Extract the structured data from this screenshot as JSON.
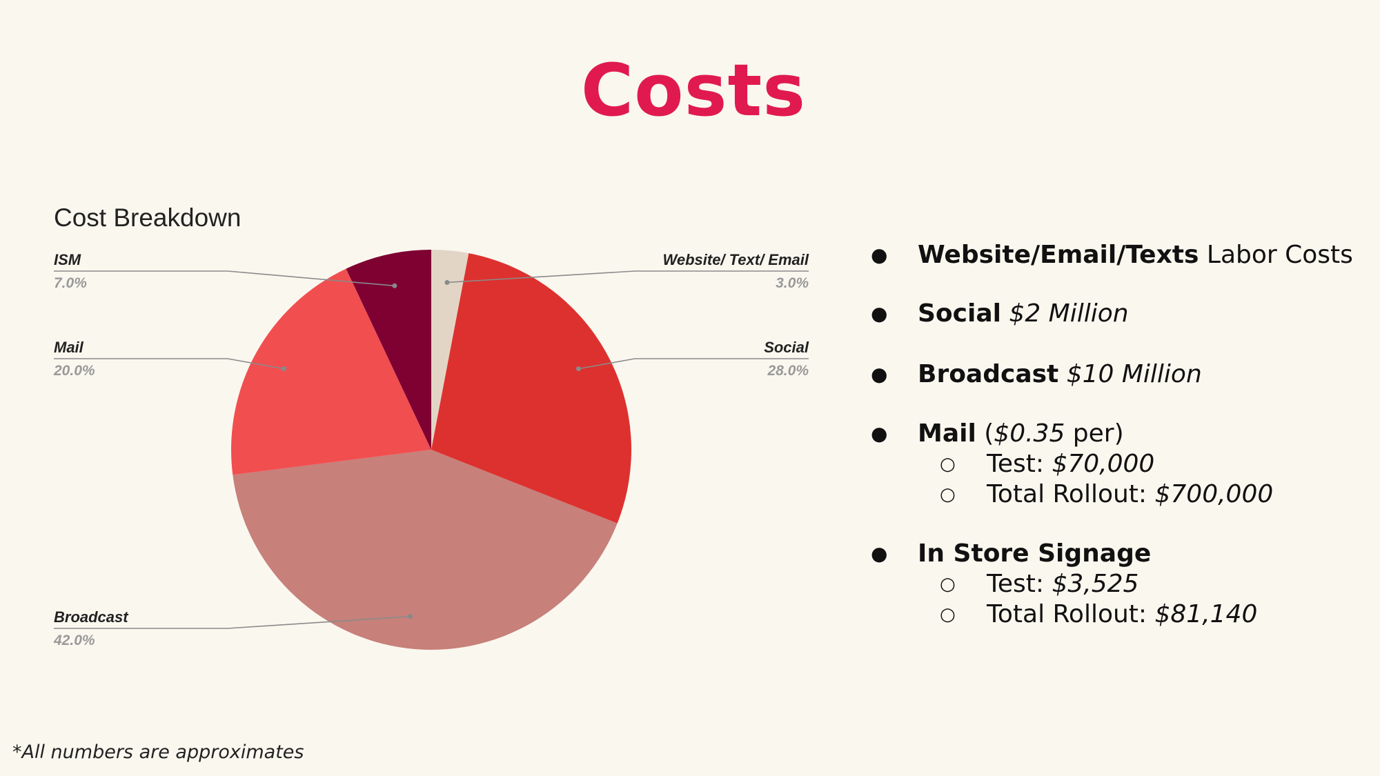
{
  "slide": {
    "title": "Costs",
    "footnote": "*All numbers are approximates"
  },
  "chart_data": {
    "type": "pie",
    "title": "Cost Breakdown",
    "slices": [
      {
        "label": "Website/ Text/ Email",
        "value": 3.0,
        "pct_label": "3.0%",
        "color": "#e2d5c6"
      },
      {
        "label": "Social",
        "value": 28.0,
        "pct_label": "28.0%",
        "color": "#dd312f"
      },
      {
        "label": "Broadcast",
        "value": 42.0,
        "pct_label": "42.0%",
        "color": "#c7807a"
      },
      {
        "label": "Mail",
        "value": 20.0,
        "pct_label": "20.0%",
        "color": "#f14e50"
      },
      {
        "label": "ISM",
        "value": 7.0,
        "pct_label": "7.0%",
        "color": "#7e0132"
      }
    ],
    "legend": "outside-labels"
  },
  "bullets": {
    "item1": {
      "bold": "Website/Email/Texts",
      "text": " Labor Costs"
    },
    "item2": {
      "bold": "Social",
      "text": " $2 Million"
    },
    "item3": {
      "bold": "Broadcast",
      "text": " $10 Million"
    },
    "item4": {
      "bold": "Mail",
      "text_a": " (",
      "text_italic": "$0.35",
      "text_b": " per)",
      "sub1_label": "Test: ",
      "sub1_value": "$70,000",
      "sub2_label": "Total Rollout: ",
      "sub2_value": "$700,000"
    },
    "item5": {
      "bold": "In Store Signage",
      "sub1_label": "Test: ",
      "sub1_value": "$3,525",
      "sub2_label": "Total Rollout: ",
      "sub2_value": "$81,140"
    }
  }
}
